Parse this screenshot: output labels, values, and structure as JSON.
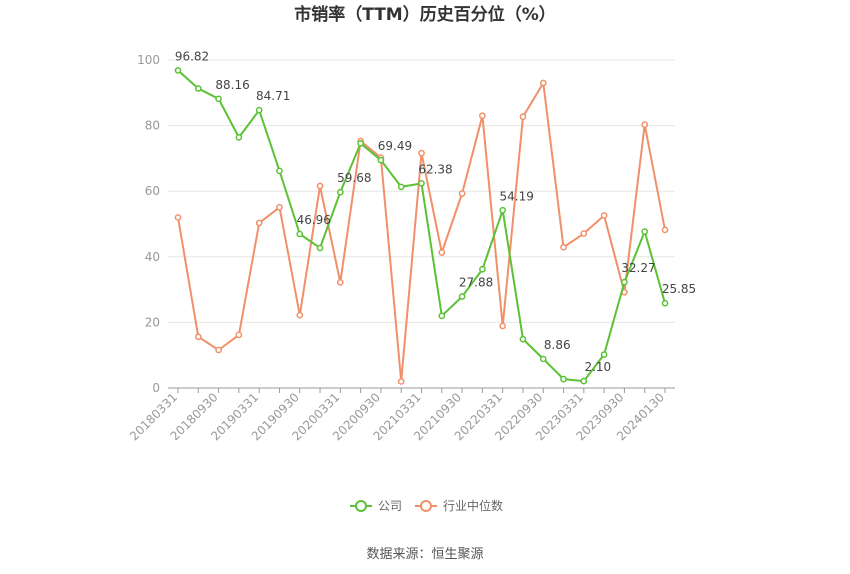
{
  "chart_data": {
    "type": "line",
    "title": "市销率（TTM）历史百分位（%）",
    "ylim": [
      0,
      100
    ],
    "y_ticks": [
      0,
      20,
      40,
      60,
      80,
      100
    ],
    "x_tick_labels": [
      "20180331",
      "20180930",
      "20190331",
      "20190930",
      "20200331",
      "20200930",
      "20210331",
      "20210930",
      "20220331",
      "20220930",
      "20230331",
      "20230930",
      "20240130"
    ],
    "x": [
      "20180331",
      "20180630",
      "20180930",
      "20181231",
      "20190331",
      "20190630",
      "20190930",
      "20191231",
      "20200331",
      "20200630",
      "20200930",
      "20201231",
      "20210331",
      "20210630",
      "20210930",
      "20211231",
      "20220331",
      "20220630",
      "20220930",
      "20221231",
      "20230331",
      "20230630",
      "20230930",
      "20231231",
      "20240130"
    ],
    "series": [
      {
        "name": "公司",
        "color": "#5ac234",
        "values": [
          96.82,
          91.3,
          88.16,
          76.4,
          84.71,
          66.2,
          46.96,
          42.7,
          59.68,
          74.6,
          69.49,
          61.3,
          62.38,
          22.0,
          27.88,
          36.2,
          54.19,
          14.9,
          8.86,
          2.7,
          2.1,
          10.2,
          32.27,
          47.7,
          25.85
        ],
        "labels": [
          "96.82",
          "",
          "88.16",
          "",
          "84.71",
          "",
          "46.96",
          "",
          "59.68",
          "",
          "69.49",
          "",
          "62.38",
          "",
          "27.88",
          "",
          "54.19",
          "",
          "8.86",
          "",
          "2.10",
          "",
          "32.27",
          "",
          "25.85"
        ]
      },
      {
        "name": "行业中位数",
        "color": "#f0906a",
        "values": [
          52.0,
          15.6,
          11.6,
          16.2,
          50.3,
          55.1,
          22.2,
          61.6,
          32.2,
          75.3,
          70.2,
          2.0,
          71.6,
          41.3,
          59.3,
          83.0,
          18.9,
          82.7,
          93.0,
          42.9,
          47.1,
          52.6,
          29.2,
          80.3,
          48.2
        ]
      }
    ],
    "legend_position": "bottom-center",
    "grid": true
  },
  "source_text": "数据来源：恒生聚源"
}
